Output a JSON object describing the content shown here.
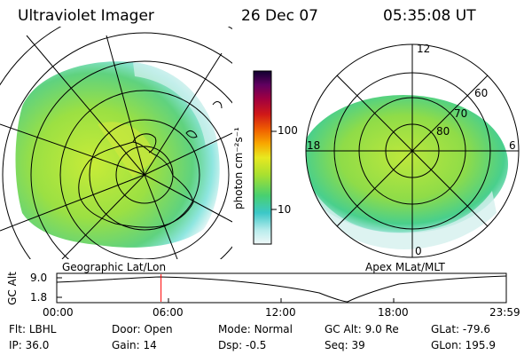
{
  "header": {
    "instrument": "Ultraviolet Imager",
    "date": "26 Dec 07",
    "time": "05:35:08 UT"
  },
  "left_panel": {
    "caption": "Geographic Lat/Lon"
  },
  "right_panel": {
    "caption": "Apex MLat/MLT",
    "mlt_labels": {
      "top": "12",
      "left": "18",
      "right": "6",
      "bottom": "0"
    },
    "mlat_labels": [
      "60",
      "70",
      "80"
    ]
  },
  "colorbar": {
    "unit_label": "photon cm⁻²s⁻¹",
    "ticks": [
      "100",
      "10"
    ]
  },
  "altitude_plot": {
    "ylabel": "GC Alt",
    "yticks": [
      "9.0",
      "1.8"
    ],
    "xticks": [
      "00:00",
      "06:00",
      "12:00",
      "18:00",
      "23:59"
    ],
    "current_time_fraction": 0.232
  },
  "status": {
    "row1": [
      {
        "label": "Flt:",
        "value": "LBHL"
      },
      {
        "label": "Door:",
        "value": "Open"
      },
      {
        "label": "Mode:",
        "value": "Normal"
      },
      {
        "label": "GC Alt:",
        "value": "9.0 Re"
      },
      {
        "label": "GLat:",
        "value": "-79.6"
      }
    ],
    "row2": [
      {
        "label": "IP:",
        "value": "36.0"
      },
      {
        "label": "Gain:",
        "value": "14"
      },
      {
        "label": "Dsp:",
        "value": "-0.5"
      },
      {
        "label": "Seq:",
        "value": "39"
      },
      {
        "label": "GLon:",
        "value": "195.9"
      }
    ]
  },
  "colors": {
    "cursor": "#ff0000",
    "frame": "#000000"
  }
}
